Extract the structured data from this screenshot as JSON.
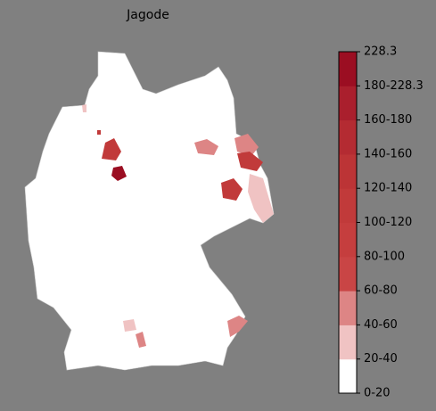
{
  "title": "Jagode",
  "colorbar": {
    "labels": [
      "0-20",
      "20-40",
      "40-60",
      "60-80",
      "80-100",
      "100-120",
      "120-140",
      "140-160",
      "160-180",
      "180-228.3",
      "228.3"
    ],
    "colors": [
      "#ffffff",
      "#f0c3c3",
      "#dd8585",
      "#c94545",
      "#c53e3e",
      "#c13a3a",
      "#bc3436",
      "#b42b32",
      "#aa1f2d",
      "#9b0e22"
    ]
  }
}
